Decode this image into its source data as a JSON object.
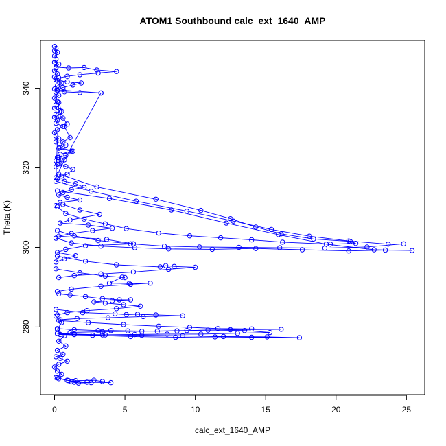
{
  "chart_data": {
    "type": "line",
    "title": "ATOM1 Southbound calc_ext_1640_AMP",
    "xlabel": "calc_ext_1640_AMP",
    "ylabel": "Theta (K)",
    "xlim": [
      -1.0,
      26.3
    ],
    "ylim": [
      263,
      352
    ],
    "x_ticks": [
      0,
      5,
      10,
      15,
      20,
      25
    ],
    "y_ticks": [
      280,
      300,
      320,
      340
    ],
    "grid": false,
    "marker": "open-circle",
    "color": "#0000ff",
    "series": [
      {
        "x": [
          0.0,
          0.1,
          0.0,
          0.2,
          0.0,
          0.1,
          0.0,
          0.3,
          0.1,
          0.0,
          0.2,
          0.0,
          0.1,
          0.5,
          0.2,
          0.0,
          0.1,
          0.3,
          0.0,
          0.2,
          0.1,
          0.0,
          0.4,
          0.1,
          0.0,
          0.2,
          0.1,
          0.6,
          0.2,
          0.0,
          0.1,
          0.3,
          0.1,
          0.8,
          0.3,
          1.2,
          0.4,
          0.2,
          0.1
        ],
        "y": [
          350.5,
          350,
          349.4,
          349,
          348.1,
          347.3,
          346.5,
          346,
          345.1,
          344.4,
          343.6,
          342.8,
          342.1,
          341.3,
          340.6,
          339.8,
          339,
          338.2,
          337.5,
          336.6,
          335.8,
          335,
          334.3,
          333.5,
          332.7,
          331.9,
          331.2,
          330.4,
          329.6,
          328.8,
          328,
          327.3,
          326.5,
          325.7,
          324.9,
          324.2,
          323.4,
          322.6,
          321.8
        ]
      },
      {
        "x": [
          0.1,
          1.0,
          2.1,
          3.0,
          4.4,
          3.1,
          1.8,
          0.9,
          0.3,
          0.1
        ],
        "y": [
          345.3,
          345.1,
          345.2,
          344.6,
          344.2,
          343.8,
          343.4,
          343,
          342.6,
          342.1
        ]
      },
      {
        "x": [
          0.2,
          0.9,
          1.9,
          1.3,
          0.6,
          0.2,
          3.3,
          1.8,
          0.7,
          0.2
        ],
        "y": [
          342,
          341.6,
          341.3,
          340.8,
          340.2,
          339.6,
          338.8,
          338.9,
          339.1,
          339.4
        ]
      },
      {
        "x": [
          3.3,
          0.7,
          0.1,
          0.3,
          0.5,
          0.4,
          0.6,
          0.9,
          0.7,
          1.1,
          0.6,
          0.4,
          1.3,
          0.8,
          0.3,
          0.5,
          0.2,
          0.1
        ],
        "y": [
          338.8,
          322,
          317.5,
          336.4,
          334.2,
          333,
          332.5,
          331,
          330.4,
          327.6,
          326.5,
          325.1,
          324.2,
          323.1,
          322.6,
          321.7,
          320.9,
          320.2
        ]
      },
      {
        "x": [
          0.4,
          0.8,
          1.3,
          0.9,
          0.5,
          0.2,
          0.7,
          1.5,
          2.1,
          1.2,
          0.6,
          0.3,
          0.9,
          1.8,
          0.4,
          0.1
        ],
        "y": [
          321,
          320.3,
          319.6,
          318.4,
          317.9,
          317.2,
          316.6,
          316,
          315.1,
          314.5,
          313.8,
          313.2,
          312.6,
          311.9,
          311.3,
          310.5
        ]
      },
      {
        "x": [
          0.3,
          3.0,
          7.2,
          10.4,
          12.5,
          14.3,
          16.1,
          18.4,
          21.0,
          21.4,
          19.6,
          16.2,
          14.0,
          11.8,
          9.6,
          7.4,
          5.1,
          3.6,
          2.1,
          0.8,
          0.2
        ],
        "y": [
          318.4,
          315.2,
          312.1,
          309.3,
          307.2,
          305.1,
          303.4,
          302.1,
          301.5,
          301,
          300.8,
          301.3,
          301.9,
          302.4,
          302.9,
          303.6,
          304.7,
          305.9,
          307.1,
          308.5,
          310.2
        ]
      },
      {
        "x": [
          0.1,
          2.6,
          5.8,
          9.4,
          12.7,
          15.4,
          18.1,
          20.9,
          23.7,
          24.8,
          22.2,
          19.2,
          16.0,
          13.1,
          10.3,
          7.8,
          5.4,
          3.1,
          1.4,
          0.2
        ],
        "y": [
          316.6,
          314.1,
          311.6,
          309.1,
          306.6,
          304.5,
          302.8,
          301.6,
          300.8,
          300.9,
          300.1,
          299.8,
          299.9,
          300,
          300.1,
          300.3,
          300.9,
          301.7,
          302.9,
          304.2
        ]
      },
      {
        "x": [
          0.2,
          3.9,
          8.3,
          12.2,
          15.9,
          19.3,
          22.7,
          25.4,
          23.5,
          20.9,
          17.6,
          14.3,
          11.2,
          8.1,
          5.7,
          3.3,
          1.2,
          0.1
        ],
        "y": [
          314.2,
          312.3,
          309.4,
          306.1,
          303.2,
          300.8,
          299.4,
          299.2,
          299.3,
          299.1,
          299.4,
          299.7,
          299.5,
          299.6,
          299.9,
          300.3,
          301.1,
          302.3
        ]
      },
      {
        "x": [
          0.6,
          1.8,
          3.2,
          1.1,
          0.4,
          2.4,
          4.1,
          2.7,
          1.2,
          0.3,
          3.7,
          5.6,
          2.2,
          0.8,
          0.2,
          1.5,
          0.7,
          0.1
        ],
        "y": [
          310.8,
          309.4,
          308.3,
          306.9,
          306.1,
          305.6,
          304.8,
          304.2,
          303.5,
          302.8,
          302,
          300.9,
          300.4,
          299.5,
          298.7,
          297.9,
          297.1,
          296.3
        ]
      },
      {
        "x": [
          0.2,
          2.2,
          4.4,
          7.5,
          7.9,
          8.5,
          10.0,
          8.1,
          5.6,
          3.3,
          1.4,
          0.3
        ],
        "y": [
          297.8,
          296.5,
          295.6,
          295.1,
          295.4,
          295.2,
          295,
          294.5,
          293.8,
          293.3,
          292.9,
          292.4
        ]
      },
      {
        "x": [
          0.1,
          1.8,
          3.6,
          5.0,
          4.8,
          3.9,
          5.3,
          6.8,
          5.4,
          3.3,
          1.2,
          0.2
        ],
        "y": [
          294.6,
          293.6,
          292.8,
          292.4,
          292.5,
          291,
          290.9,
          291,
          290.7,
          290.2,
          289.5,
          288.9
        ]
      },
      {
        "x": [
          0.3,
          1.1,
          2.2,
          3.4,
          4.6,
          5.4,
          4.1,
          2.8,
          3.6,
          4.9,
          6.1,
          4.4,
          2.3,
          0.9,
          0.2
        ],
        "y": [
          288.3,
          288,
          287.6,
          287.1,
          286.8,
          286.8,
          286.6,
          286.3,
          286,
          285.6,
          285.2,
          284.6,
          284.1,
          283.6,
          283
        ]
      },
      {
        "x": [
          0.1,
          2.0,
          4.3,
          5.1,
          5.9,
          7.2,
          9.1,
          6.3,
          3.8,
          1.6,
          0.4
        ],
        "y": [
          284.4,
          283.6,
          283.3,
          283.1,
          283.2,
          283,
          282.8,
          282.6,
          282.3,
          282.1,
          281.8
        ]
      },
      {
        "x": [
          0.3,
          2.4,
          4.9,
          7.4,
          9.6,
          11.6,
          14.0,
          16.1,
          12.5,
          9.4,
          6.2,
          3.4,
          1.1
        ],
        "y": [
          281.6,
          281.1,
          280.6,
          280.2,
          279.9,
          279.6,
          279.5,
          279.4,
          279.3,
          279.1,
          278.9,
          278.8,
          278.6
        ]
      },
      {
        "x": [
          0.2,
          1.4,
          3.1,
          4.0,
          5.2,
          7.3,
          8.7,
          10.9,
          13.5,
          15.3,
          13.0,
          10.4,
          8.0,
          5.7,
          3.4,
          1.4,
          0.2
        ],
        "y": [
          279.6,
          279.3,
          279.1,
          279.1,
          279,
          278.9,
          279,
          279.2,
          279.1,
          278.6,
          278.4,
          278.2,
          278.2,
          278.1,
          278,
          278.2,
          278.4
        ]
      },
      {
        "x": [
          0.4,
          2.7,
          5.4,
          8.6,
          11.4,
          14.0,
          17.4,
          15.1,
          12.0,
          9.1,
          6.2,
          3.6,
          1.4,
          0.2
        ],
        "y": [
          278.1,
          277.9,
          277.6,
          277.4,
          277.5,
          277.4,
          277.3,
          277.5,
          277.6,
          277.8,
          277.9,
          278,
          278.1,
          278.3
        ]
      },
      {
        "x": [
          0.1,
          0.5,
          0.2,
          0.7,
          0.3,
          0.8,
          0.2,
          0.6,
          0.1,
          0.4,
          0.9,
          0.3,
          0.0,
          0.2,
          0.5,
          0.1
        ],
        "y": [
          282.7,
          281.1,
          279.4,
          277.8,
          276.4,
          275.2,
          274.1,
          273.1,
          272.5,
          272.1,
          271.4,
          270.6,
          269.9,
          268.9,
          268.1,
          267.3
        ]
      },
      {
        "x": [
          0.2,
          0.9,
          1.4,
          1.7,
          2.6,
          1.2,
          1.5,
          2.8,
          3.4,
          4.0,
          2.3,
          1.0,
          0.3
        ],
        "y": [
          267.2,
          266.6,
          266.1,
          265.9,
          266,
          266.2,
          266.5,
          266.6,
          266.3,
          266,
          266.1,
          266.5,
          267
        ]
      }
    ]
  }
}
